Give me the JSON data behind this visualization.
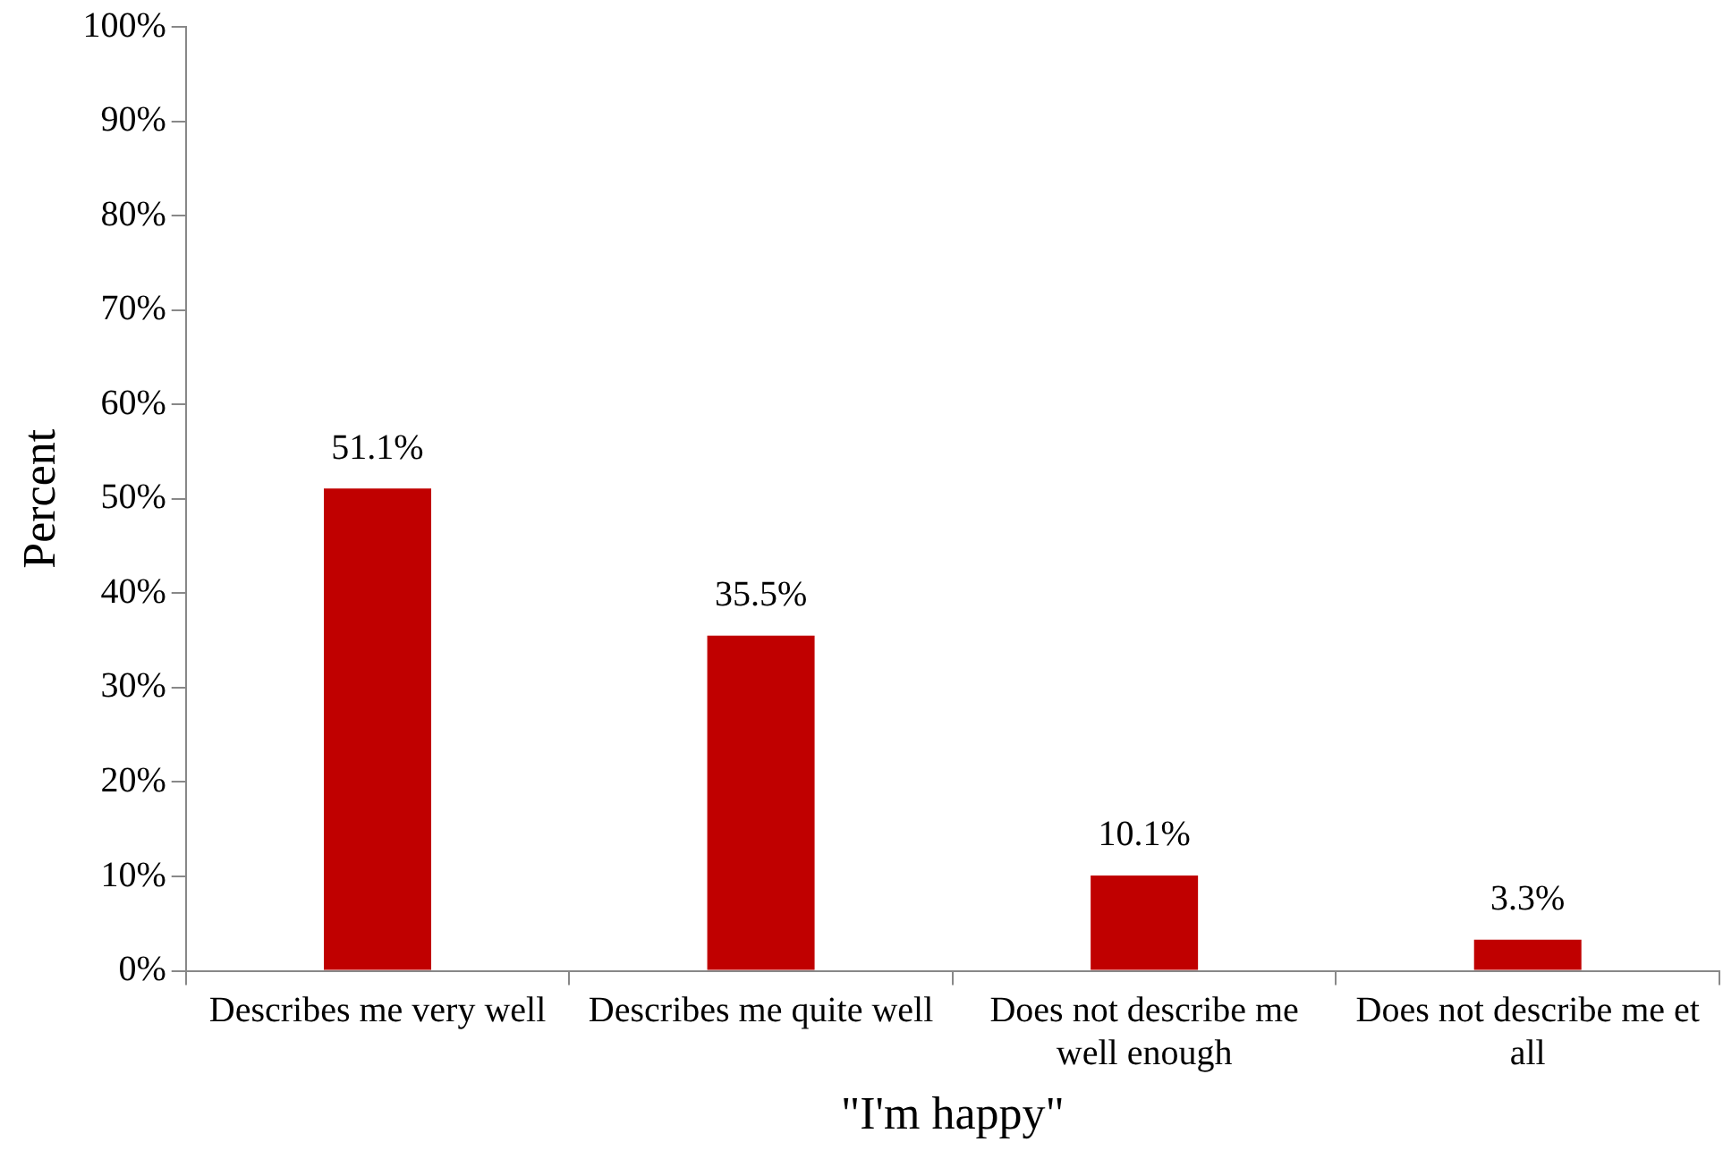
{
  "chart_data": {
    "type": "bar",
    "xlabel": "\"I'm happy\"",
    "ylabel": "Percent",
    "categories": [
      "Describes me very well",
      "Describes me quite well",
      "Does not describe me well enough",
      "Does not describe me et all"
    ],
    "values": [
      51.1,
      35.5,
      10.1,
      3.3
    ],
    "value_labels": [
      "51.1%",
      "35.5%",
      "10.1%",
      "3.3%"
    ],
    "color": "#c00000",
    "ylim": [
      0,
      100
    ],
    "yticks": [
      {
        "value": 0,
        "label": "0%"
      },
      {
        "value": 10,
        "label": "10%"
      },
      {
        "value": 20,
        "label": "20%"
      },
      {
        "value": 30,
        "label": "30%"
      },
      {
        "value": 40,
        "label": "40%"
      },
      {
        "value": 50,
        "label": "50%"
      },
      {
        "value": 60,
        "label": "60%"
      },
      {
        "value": 70,
        "label": "70%"
      },
      {
        "value": 80,
        "label": "80%"
      },
      {
        "value": 90,
        "label": "90%"
      },
      {
        "value": 100,
        "label": "100%"
      }
    ],
    "grid": false,
    "legend": false
  }
}
